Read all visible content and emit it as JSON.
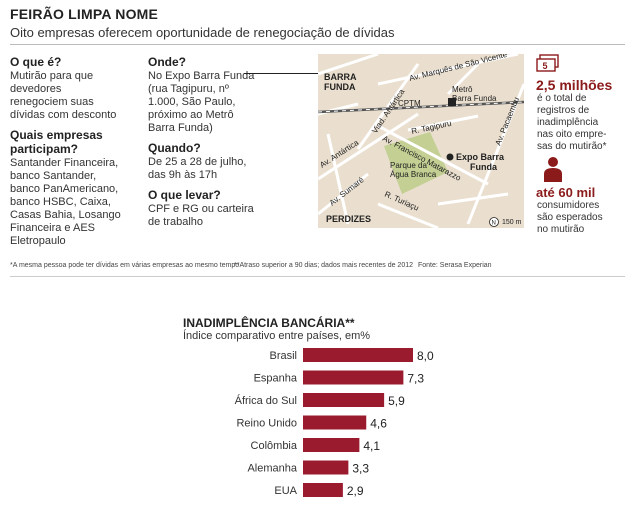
{
  "header": {
    "title": "FEIRÃO LIMPA NOME",
    "subtitle": "Oito empresas oferecem oportunidade de renegociação de dívidas"
  },
  "info": {
    "o_que_e": {
      "q": "O que é?",
      "a": [
        "Mutirão para que",
        "devedores",
        "renegociem suas",
        "dívidas com desconto"
      ]
    },
    "quais_empresas": {
      "q": [
        "Quais empresas",
        "participam?"
      ],
      "a": [
        "Santander Financeira,",
        "banco Santander,",
        "banco PanAmericano,",
        "banco HSBC, Caixa,",
        "Casas Bahia, Losango",
        "Financeira e AES",
        "Eletropaulo"
      ]
    },
    "onde": {
      "q": "Onde?",
      "a": [
        "No Expo Barra Funda",
        "(rua Tagipuru, nº",
        "1.000, São Paulo,",
        "próximo ao Metrô",
        "Barra Funda)"
      ]
    },
    "quando": {
      "q": "Quando?",
      "a": [
        "De 25 a 28 de julho,",
        "das 9h às 17h"
      ]
    },
    "o_que_levar": {
      "q": "O que levar?",
      "a": [
        "CPF e RG ou carteira",
        "de trabalho"
      ]
    }
  },
  "map": {
    "labels": {
      "barra_funda": [
        "BARRA",
        "FUNDA"
      ],
      "marques": "Av. Marquês de São Vicente",
      "viad_antartica": "Viad. Antártica",
      "cptm": "CPTM",
      "metro": [
        "Metrô",
        "Barra Funda"
      ],
      "pacaembu": "Av. Pacaembu",
      "tagipuru": "R. Tagipuru",
      "antartica": "Av. Antártica",
      "matarazzo": "Av. Francisco Matarazzo",
      "parque": [
        "Parque da",
        "Água Branca"
      ],
      "expo": [
        "Expo Barra",
        "Funda"
      ],
      "sumare": "Av. Sumaré",
      "turiacu": "R. Turiaçu",
      "perdizes": "PERDIZES",
      "north": "N",
      "scale": "150 m"
    },
    "colors": {
      "land": "#eadfcf",
      "park": "#c3cf93",
      "road": "#ffffff",
      "rail": "#555555",
      "marker": "#222222"
    }
  },
  "stats": {
    "icon_money_number": "5",
    "stat1": {
      "value": "2,5 milhões",
      "text": [
        "é o total de",
        "registros de",
        "inadimplência",
        "nas oito empre-",
        "sas do mutirão*"
      ]
    },
    "stat2": {
      "value": "até 60 mil",
      "text": [
        "consumidores",
        "são esperados",
        "no mutirão"
      ]
    }
  },
  "footnotes": {
    "note1": "*A mesma pessoa pode ter dívidas em várias empresas ao mesmo tempo",
    "note2": "**Atraso superior a 90 dias; dados mais recentes de 2012",
    "source": "Fonte: Serasa Experian"
  },
  "chart_data": {
    "type": "bar",
    "orientation": "horizontal",
    "title": "INADIMPLÊNCIA BANCÁRIA**",
    "subtitle": "Índice comparativo entre países, em%",
    "categories": [
      "Brasil",
      "Espanha",
      "África do Sul",
      "Reino Unido",
      "Colômbia",
      "Alemanha",
      "EUA"
    ],
    "values": [
      8.0,
      7.3,
      5.9,
      4.6,
      4.1,
      3.3,
      2.9
    ],
    "value_labels": [
      "8,0",
      "7,3",
      "5,9",
      "4,6",
      "4,1",
      "3,3",
      "2,9"
    ],
    "bar_color": "#9b1b2e",
    "xlim": [
      0,
      8.0
    ],
    "grid": false,
    "legend": "none"
  }
}
